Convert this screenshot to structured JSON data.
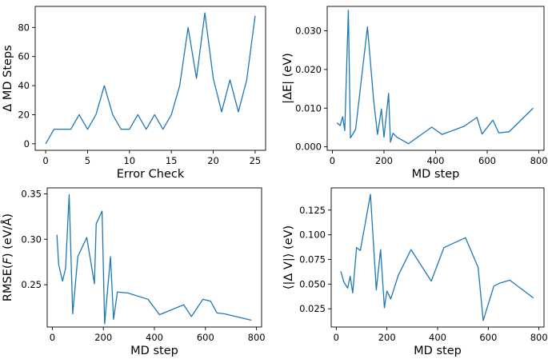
{
  "chart_data": [
    {
      "type": "line",
      "xlabel": "Error Check",
      "ylabel": "Δ MD Steps",
      "color": "#1f77b4",
      "xlim": [
        -1.25,
        26.25
      ],
      "ylim": [
        -4.5,
        94.5
      ],
      "xticks": [
        0,
        5,
        10,
        15,
        20,
        25
      ],
      "yticks": [
        0,
        20,
        40,
        60,
        80
      ],
      "xtick_labels": [
        "0",
        "5",
        "10",
        "15",
        "20",
        "25"
      ],
      "ytick_labels": [
        "0",
        "20",
        "40",
        "60",
        "80"
      ],
      "x": [
        0,
        1,
        2,
        3,
        4,
        5,
        6,
        7,
        8,
        9,
        10,
        11,
        12,
        13,
        14,
        15,
        16,
        17,
        18,
        19,
        20,
        21,
        22,
        23,
        24,
        25
      ],
      "y": [
        0,
        10,
        10,
        10,
        20,
        10,
        20,
        40,
        20,
        10,
        10,
        20,
        10,
        20,
        10,
        20,
        40,
        80,
        45,
        90,
        45,
        22,
        44,
        22,
        44,
        88
      ]
    },
    {
      "type": "line",
      "xlabel": "MD step",
      "ylabel": "|ΔE| (eV)",
      "color": "#1f77b4",
      "xlim": [
        -20,
        820
      ],
      "ylim": [
        -0.0009,
        0.0363
      ],
      "xticks": [
        0,
        200,
        400,
        600,
        800
      ],
      "yticks": [
        0.0,
        0.01,
        0.02,
        0.03
      ],
      "xtick_labels": [
        "0",
        "200",
        "400",
        "600",
        "800"
      ],
      "ytick_labels": [
        "0.000",
        "0.010",
        "0.020",
        "0.030"
      ],
      "x": [
        18,
        30,
        40,
        48,
        62,
        70,
        90,
        136,
        160,
        175,
        190,
        200,
        218,
        225,
        235,
        250,
        295,
        385,
        425,
        510,
        560,
        580,
        622,
        645,
        685,
        778
      ],
      "y": [
        0.0062,
        0.0055,
        0.0078,
        0.0042,
        0.0353,
        0.0023,
        0.0045,
        0.031,
        0.012,
        0.0032,
        0.0098,
        0.0025,
        0.0138,
        0.0012,
        0.0035,
        0.0025,
        0.0008,
        0.0051,
        0.0032,
        0.0053,
        0.0076,
        0.0033,
        0.0069,
        0.0036,
        0.0039,
        0.01
      ]
    },
    {
      "type": "line",
      "xlabel": "MD step",
      "ylabel": "RMSE(F) (eV/Å)",
      "ylabel_parts": [
        "RMSE(",
        "F",
        ") (eV/Å)"
      ],
      "color": "#1f77b4",
      "xlim": [
        -20,
        820
      ],
      "ylim": [
        0.2035,
        0.3565
      ],
      "xticks": [
        0,
        200,
        400,
        600,
        800
      ],
      "yticks": [
        0.25,
        0.3,
        0.35
      ],
      "xtick_labels": [
        "0",
        "200",
        "400",
        "600",
        "800"
      ],
      "ytick_labels": [
        "0.25",
        "0.30",
        "0.35"
      ],
      "x": [
        18,
        25,
        40,
        52,
        66,
        80,
        100,
        135,
        165,
        172,
        195,
        205,
        228,
        240,
        255,
        295,
        375,
        420,
        515,
        545,
        590,
        620,
        645,
        675,
        780
      ],
      "y": [
        0.305,
        0.272,
        0.254,
        0.268,
        0.349,
        0.218,
        0.281,
        0.302,
        0.251,
        0.317,
        0.331,
        0.207,
        0.281,
        0.212,
        0.242,
        0.241,
        0.234,
        0.217,
        0.228,
        0.215,
        0.234,
        0.232,
        0.219,
        0.218,
        0.211
      ]
    },
    {
      "type": "line",
      "xlabel": "MD step",
      "ylabel": "⟨|Δ V|⟩ (eV)",
      "color": "#1f77b4",
      "xlim": [
        -20,
        820
      ],
      "ylim": [
        0.0065,
        0.1475
      ],
      "xticks": [
        0,
        200,
        400,
        600,
        800
      ],
      "yticks": [
        0.025,
        0.05,
        0.075,
        0.1,
        0.125
      ],
      "xtick_labels": [
        "0",
        "200",
        "400",
        "600",
        "800"
      ],
      "ytick_labels": [
        "0.025",
        "0.050",
        "0.075",
        "0.100",
        "0.125"
      ],
      "x": [
        18,
        30,
        45,
        55,
        65,
        80,
        95,
        135,
        158,
        175,
        190,
        200,
        215,
        245,
        295,
        375,
        425,
        510,
        560,
        580,
        622,
        645,
        685,
        778
      ],
      "y": [
        0.063,
        0.052,
        0.046,
        0.058,
        0.041,
        0.087,
        0.084,
        0.141,
        0.044,
        0.085,
        0.026,
        0.043,
        0.035,
        0.059,
        0.085,
        0.053,
        0.087,
        0.097,
        0.067,
        0.013,
        0.048,
        0.051,
        0.054,
        0.036
      ]
    }
  ]
}
